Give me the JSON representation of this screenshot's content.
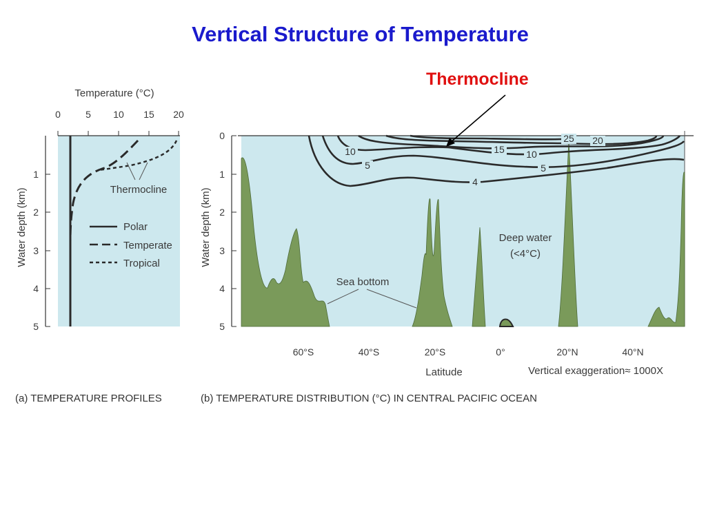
{
  "slide": {
    "title": "Vertical Structure of Temperature",
    "callout": "Thermocline"
  },
  "colors": {
    "title": "#1a1acc",
    "callout": "#e01010",
    "water": "#cde8ee",
    "seafloor": "#7a9a5a",
    "lines": "#2a2a2a"
  },
  "panel_a": {
    "x_axis_title": "Temperature (°C)",
    "x_ticks": [
      "0",
      "5",
      "10",
      "15",
      "20"
    ],
    "y_axis_title": "Water depth (km)",
    "y_ticks": [
      "1",
      "2",
      "3",
      "4",
      "5"
    ],
    "thermocline_label": "Thermocline",
    "legend": [
      {
        "label": "Polar",
        "style": "solid"
      },
      {
        "label": "Temperate",
        "style": "long-dash"
      },
      {
        "label": "Tropical",
        "style": "short-dash"
      }
    ],
    "caption": "(a) TEMPERATURE PROFILES"
  },
  "panel_b": {
    "y_axis_title": "Water depth (km)",
    "y_ticks": [
      "0",
      "1",
      "2",
      "3",
      "4",
      "5"
    ],
    "x_ticks": [
      "60°S",
      "40°S",
      "20°S",
      "0°",
      "20°N",
      "40°N"
    ],
    "x_axis_title": "Latitude",
    "exaggeration": "Vertical exaggeration≈ 1000X",
    "isotherms": [
      "25",
      "20",
      "15",
      "10",
      "10",
      "5",
      "5",
      "4"
    ],
    "deep_water_line1": "Deep water",
    "deep_water_line2": "(<4°C)",
    "sea_bottom_label": "Sea bottom",
    "caption": "(b) TEMPERATURE DISTRIBUTION (°C) IN CENTRAL PACIFIC OCEAN"
  }
}
